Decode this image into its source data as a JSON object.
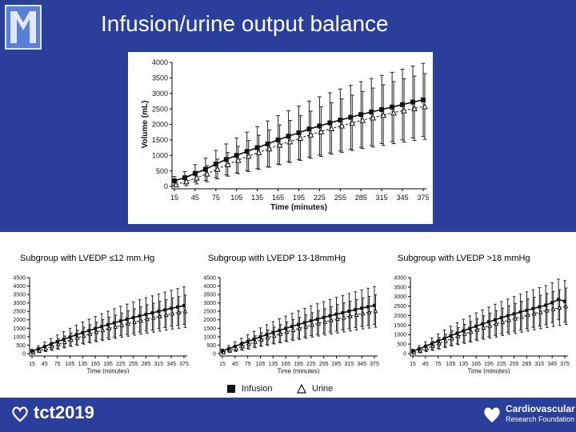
{
  "slide": {
    "title": "Infusion/urine output balance",
    "colors": {
      "header": "#2a3f9c",
      "text": "#ffffff"
    }
  },
  "legend": {
    "infusion": "Infusion",
    "urine": "Urine"
  },
  "branding": {
    "left_logo_text": "tct2019",
    "right_logo_line1": "Cardiovascular",
    "right_logo_line2": "Research Foundation"
  },
  "chart_data": [
    {
      "type": "line",
      "title": "",
      "xlabel": "Time (minutes)",
      "ylabel": "Volume (mL)",
      "x": [
        15,
        30,
        45,
        60,
        75,
        90,
        105,
        120,
        135,
        150,
        165,
        180,
        195,
        210,
        225,
        240,
        255,
        270,
        285,
        300,
        315,
        330,
        345,
        360,
        375
      ],
      "xticks": [
        15,
        45,
        75,
        105,
        135,
        165,
        195,
        225,
        255,
        285,
        315,
        345,
        375
      ],
      "yticks": [
        0,
        500,
        1000,
        1500,
        2000,
        2500,
        3000,
        3500,
        4000
      ],
      "ylim": [
        0,
        4000
      ],
      "series": [
        {
          "name": "Infusion",
          "marker": "square",
          "values": [
            180,
            280,
            420,
            550,
            720,
            870,
            1000,
            1130,
            1250,
            1370,
            1500,
            1620,
            1730,
            1850,
            1950,
            2050,
            2140,
            2230,
            2320,
            2400,
            2480,
            2560,
            2640,
            2720,
            2790
          ],
          "err": [
            140,
            200,
            280,
            360,
            440,
            500,
            560,
            620,
            680,
            740,
            780,
            820,
            860,
            900,
            940,
            970,
            1000,
            1030,
            1060,
            1080,
            1100,
            1120,
            1140,
            1160,
            1180
          ]
        },
        {
          "name": "Urine",
          "marker": "triangle",
          "values": [
            60,
            160,
            280,
            410,
            560,
            710,
            850,
            980,
            1100,
            1220,
            1340,
            1450,
            1560,
            1670,
            1770,
            1870,
            1960,
            2050,
            2140,
            2220,
            2300,
            2380,
            2450,
            2520,
            2580
          ],
          "err": [
            80,
            140,
            200,
            260,
            320,
            380,
            440,
            500,
            550,
            600,
            640,
            680,
            720,
            760,
            800,
            830,
            860,
            890,
            920,
            950,
            980,
            1000,
            1020,
            1040,
            1060
          ]
        }
      ]
    },
    {
      "type": "line",
      "title": "Subgroup with LVEDP ≤12 mm.Hg",
      "xlabel": "Time (minutes)",
      "ylabel": "",
      "x": [
        15,
        30,
        45,
        60,
        75,
        90,
        105,
        120,
        135,
        150,
        165,
        180,
        195,
        210,
        225,
        240,
        255,
        270,
        285,
        300,
        315,
        330,
        345,
        360,
        375
      ],
      "xticks": [
        15,
        45,
        75,
        105,
        135,
        165,
        195,
        225,
        255,
        285,
        315,
        345,
        375
      ],
      "xtick_labels": [
        "15",
        "45",
        "75",
        "105",
        "135",
        "165",
        "195",
        "225",
        "255",
        "285",
        "315",
        "345",
        "375"
      ],
      "yticks": [
        0,
        500,
        1000,
        1500,
        2000,
        2500,
        3000,
        3500,
        4000,
        4500
      ],
      "ylim": [
        0,
        4500
      ],
      "series": [
        {
          "name": "Infusion",
          "values": [
            150,
            280,
            420,
            560,
            700,
            840,
            980,
            1110,
            1240,
            1360,
            1480,
            1600,
            1710,
            1820,
            1930,
            2030,
            2130,
            2230,
            2320,
            2410,
            2500,
            2590,
            2680,
            2760,
            2840
          ],
          "err": [
            100,
            180,
            260,
            330,
            400,
            460,
            520,
            580,
            630,
            680,
            720,
            760,
            800,
            840,
            870,
            900,
            930,
            960,
            990,
            1010,
            1030,
            1050,
            1070,
            1090,
            1110
          ]
        },
        {
          "name": "Urine",
          "values": [
            60,
            180,
            300,
            430,
            560,
            690,
            820,
            940,
            1060,
            1170,
            1280,
            1390,
            1490,
            1590,
            1690,
            1780,
            1870,
            1960,
            2050,
            2130,
            2210,
            2290,
            2370,
            2440,
            2510
          ],
          "err": [
            60,
            120,
            180,
            240,
            300,
            350,
            400,
            450,
            500,
            540,
            580,
            620,
            660,
            690,
            720,
            750,
            780,
            810,
            840,
            860,
            880,
            900,
            920,
            940,
            960
          ]
        }
      ]
    },
    {
      "type": "line",
      "title": "Subgroup with LVEDP 13-18mmHg",
      "xlabel": "Time (minutes)",
      "ylabel": "",
      "x": [
        15,
        30,
        45,
        60,
        75,
        90,
        105,
        120,
        135,
        150,
        165,
        180,
        195,
        210,
        225,
        240,
        255,
        270,
        285,
        300,
        315,
        330,
        345,
        360,
        375
      ],
      "xticks": [
        15,
        45,
        75,
        105,
        135,
        165,
        195,
        225,
        255,
        285,
        315,
        345,
        375
      ],
      "xtick_labels": [
        "15",
        "45",
        "75",
        "105",
        "135",
        "165",
        "195",
        "225",
        "255",
        "285",
        "315",
        "345",
        "375"
      ],
      "yticks": [
        0,
        500,
        1000,
        1500,
        2000,
        2500,
        3000,
        3500,
        4000,
        4500
      ],
      "ylim": [
        0,
        4500
      ],
      "series": [
        {
          "name": "Infusion",
          "values": [
            160,
            290,
            430,
            570,
            710,
            850,
            990,
            1120,
            1250,
            1370,
            1490,
            1610,
            1720,
            1830,
            1940,
            2040,
            2140,
            2240,
            2330,
            2420,
            2510,
            2600,
            2690,
            2770,
            2850
          ],
          "err": [
            110,
            190,
            270,
            340,
            410,
            470,
            530,
            590,
            640,
            690,
            730,
            770,
            810,
            850,
            880,
            910,
            940,
            970,
            1000,
            1020,
            1040,
            1060,
            1080,
            1100,
            1120
          ]
        },
        {
          "name": "Urine",
          "values": [
            70,
            190,
            310,
            440,
            570,
            700,
            830,
            950,
            1070,
            1180,
            1290,
            1400,
            1500,
            1600,
            1700,
            1790,
            1880,
            1970,
            2060,
            2140,
            2220,
            2300,
            2380,
            2450,
            2520
          ],
          "err": [
            60,
            120,
            180,
            240,
            300,
            350,
            400,
            450,
            500,
            540,
            580,
            620,
            660,
            690,
            720,
            750,
            780,
            810,
            840,
            860,
            880,
            900,
            920,
            940,
            960
          ]
        }
      ]
    },
    {
      "type": "line",
      "title": "Subgroup with LVEDP >18 mmHg",
      "xlabel": "Time (minutes)",
      "ylabel": "",
      "x": [
        15,
        30,
        45,
        60,
        75,
        90,
        105,
        120,
        135,
        150,
        165,
        180,
        195,
        210,
        225,
        240,
        255,
        270,
        285,
        300,
        315,
        330,
        345,
        360,
        375
      ],
      "xticks": [
        15,
        45,
        75,
        105,
        135,
        165,
        195,
        225,
        255,
        285,
        315,
        345,
        375
      ],
      "xtick_labels": [
        "15",
        "45",
        "75",
        "105",
        "135",
        "165",
        "195",
        "225",
        "255",
        "285",
        "315",
        "345",
        "375"
      ],
      "yticks": [
        0,
        500,
        1000,
        1500,
        2000,
        2500,
        3000,
        3500,
        4000
      ],
      "ylim": [
        0,
        4000
      ],
      "series": [
        {
          "name": "Infusion",
          "values": [
            130,
            250,
            380,
            520,
            660,
            800,
            940,
            1070,
            1200,
            1320,
            1440,
            1560,
            1670,
            1780,
            1890,
            1990,
            2090,
            2190,
            2280,
            2370,
            2460,
            2550,
            2680,
            2850,
            2750
          ],
          "err": [
            100,
            170,
            240,
            310,
            380,
            440,
            500,
            560,
            610,
            660,
            700,
            740,
            780,
            820,
            850,
            880,
            910,
            940,
            970,
            990,
            1010,
            1030,
            1050,
            1070,
            1090
          ]
        },
        {
          "name": "Urine",
          "values": [
            50,
            160,
            280,
            410,
            540,
            670,
            800,
            920,
            1040,
            1150,
            1260,
            1370,
            1470,
            1570,
            1670,
            1760,
            1850,
            1940,
            2030,
            2110,
            2190,
            2270,
            2350,
            2420,
            2490
          ],
          "err": [
            60,
            120,
            180,
            240,
            300,
            350,
            400,
            450,
            500,
            540,
            580,
            620,
            660,
            690,
            720,
            750,
            780,
            810,
            840,
            860,
            880,
            900,
            920,
            940,
            960
          ]
        }
      ]
    }
  ]
}
